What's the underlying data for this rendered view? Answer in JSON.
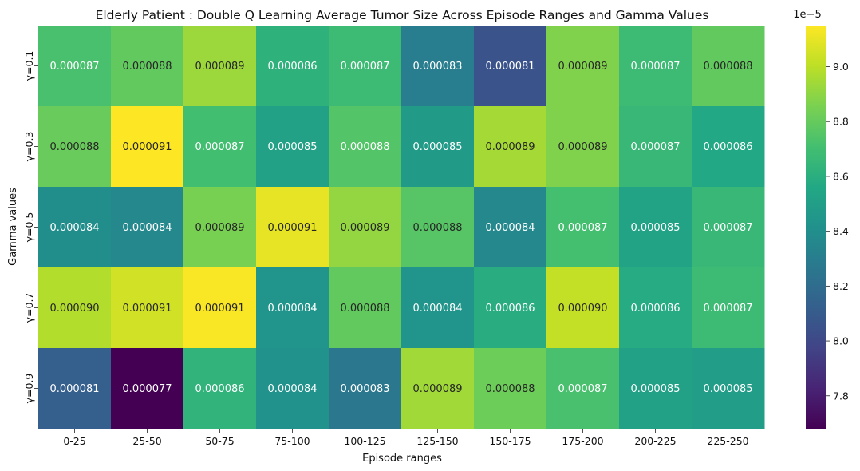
{
  "chart_data": {
    "type": "heatmap",
    "title": "Elderly Patient : Double Q Learning Average Tumor Size Across Episode Ranges and Gamma Values",
    "xlabel": "Episode ranges",
    "ylabel": "Gamma values",
    "x": [
      "0-25",
      "25-50",
      "50-75",
      "75-100",
      "100-125",
      "125-150",
      "150-175",
      "175-200",
      "200-225",
      "225-250"
    ],
    "y": [
      "γ=0.1",
      "γ=0.3",
      "γ=0.5",
      "γ=0.7",
      "γ=0.9"
    ],
    "values": [
      [
        8.72e-05,
        8.79e-05,
        8.93e-05,
        8.62e-05,
        8.68e-05,
        8.3e-05,
        8.06e-05,
        8.87e-05,
        8.68e-05,
        8.79e-05
      ],
      [
        8.81e-05,
        9.15e-05,
        8.7e-05,
        8.52e-05,
        8.75e-05,
        8.48e-05,
        8.95e-05,
        8.87e-05,
        8.66e-05,
        8.56e-05
      ],
      [
        8.4e-05,
        8.36e-05,
        8.85e-05,
        9.1e-05,
        8.91e-05,
        8.76e-05,
        8.36e-05,
        8.71e-05,
        8.53e-05,
        8.66e-05
      ],
      [
        8.98e-05,
        9.05e-05,
        9.14e-05,
        8.44e-05,
        8.79e-05,
        8.44e-05,
        8.59e-05,
        9.02e-05,
        8.58e-05,
        8.68e-05
      ],
      [
        8.12e-05,
        7.68e-05,
        8.63e-05,
        8.42e-05,
        8.26e-05,
        8.94e-05,
        8.82e-05,
        8.72e-05,
        8.52e-05,
        8.49e-05
      ]
    ],
    "labels": [
      [
        "0.000087",
        "0.000088",
        "0.000089",
        "0.000086",
        "0.000087",
        "0.000083",
        "0.000081",
        "0.000089",
        "0.000087",
        "0.000088"
      ],
      [
        "0.000088",
        "0.000091",
        "0.000087",
        "0.000085",
        "0.000088",
        "0.000085",
        "0.000089",
        "0.000089",
        "0.000087",
        "0.000086"
      ],
      [
        "0.000084",
        "0.000084",
        "0.000089",
        "0.000091",
        "0.000089",
        "0.000088",
        "0.000084",
        "0.000087",
        "0.000085",
        "0.000087"
      ],
      [
        "0.000090",
        "0.000091",
        "0.000091",
        "0.000084",
        "0.000088",
        "0.000084",
        "0.000086",
        "0.000090",
        "0.000086",
        "0.000087"
      ],
      [
        "0.000081",
        "0.000077",
        "0.000086",
        "0.000084",
        "0.000083",
        "0.000089",
        "0.000088",
        "0.000087",
        "0.000085",
        "0.000085"
      ]
    ],
    "colormap": "viridis",
    "vmin": 7.68e-05,
    "vmax": 9.15e-05,
    "colorbar": {
      "ticks": [
        7.8,
        8.0,
        8.2,
        8.4,
        8.6,
        8.8,
        9.0
      ],
      "tick_labels": [
        "7.8",
        "8.0",
        "8.2",
        "8.4",
        "8.6",
        "8.8",
        "9.0"
      ],
      "scale_label": "1e−5"
    }
  }
}
